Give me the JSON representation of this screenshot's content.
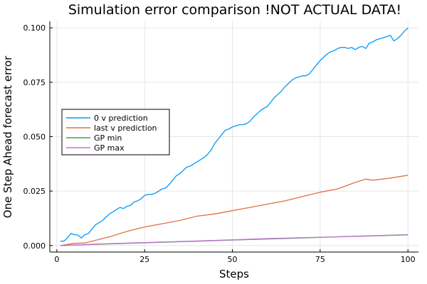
{
  "chart_data": {
    "type": "line",
    "title": "Simulation error comparison !NOT ACTUAL DATA!",
    "xlabel": "Steps",
    "ylabel": "One Step Ahead forecast error",
    "xlim": [
      -2,
      103
    ],
    "ylim": [
      -0.003,
      0.103
    ],
    "xticks": [
      0,
      25,
      50,
      75,
      100
    ],
    "xtick_labels": [
      "0",
      "25",
      "50",
      "75",
      "100"
    ],
    "yticks": [
      0.0,
      0.025,
      0.05,
      0.075,
      0.1
    ],
    "ytick_labels": [
      "0.000",
      "0.025",
      "0.050",
      "0.075",
      "0.100"
    ],
    "grid": true,
    "legend_position": "left",
    "series": [
      {
        "name": "0 v prediction",
        "color": "#009AFA",
        "x": [
          1,
          2,
          3,
          4,
          5,
          6,
          7,
          8,
          9,
          10,
          11,
          12,
          13,
          14,
          15,
          16,
          17,
          18,
          19,
          20,
          21,
          22,
          23,
          24,
          25,
          26,
          27,
          28,
          29,
          30,
          31,
          32,
          33,
          34,
          35,
          36,
          37,
          38,
          39,
          40,
          41,
          42,
          43,
          44,
          45,
          46,
          47,
          48,
          49,
          50,
          51,
          52,
          53,
          54,
          55,
          56,
          57,
          58,
          59,
          60,
          61,
          62,
          63,
          64,
          65,
          66,
          67,
          68,
          69,
          70,
          71,
          72,
          73,
          74,
          75,
          76,
          77,
          78,
          79,
          80,
          81,
          82,
          83,
          84,
          85,
          86,
          87,
          88,
          89,
          90,
          91,
          92,
          93,
          94,
          95,
          96,
          97,
          98,
          99,
          100
        ],
        "values": [
          0.002,
          0.002,
          0.0035,
          0.0055,
          0.005,
          0.0048,
          0.0035,
          0.005,
          0.0055,
          0.0075,
          0.0095,
          0.0105,
          0.0115,
          0.013,
          0.0145,
          0.0155,
          0.0165,
          0.0175,
          0.017,
          0.018,
          0.0185,
          0.02,
          0.0205,
          0.0215,
          0.023,
          0.0235,
          0.0235,
          0.024,
          0.025,
          0.026,
          0.0265,
          0.028,
          0.03,
          0.032,
          0.033,
          0.0345,
          0.036,
          0.0365,
          0.0375,
          0.0385,
          0.0395,
          0.0405,
          0.042,
          0.044,
          0.047,
          0.049,
          0.051,
          0.053,
          0.0535,
          0.0545,
          0.055,
          0.0555,
          0.0555,
          0.056,
          0.057,
          0.059,
          0.0605,
          0.062,
          0.063,
          0.064,
          0.066,
          0.068,
          0.0695,
          0.071,
          0.073,
          0.0745,
          0.076,
          0.077,
          0.0775,
          0.078,
          0.078,
          0.079,
          0.081,
          0.083,
          0.085,
          0.0865,
          0.088,
          0.089,
          0.0895,
          0.0905,
          0.091,
          0.091,
          0.0905,
          0.091,
          0.09,
          0.091,
          0.0915,
          0.0905,
          0.093,
          0.0935,
          0.0945,
          0.095,
          0.0955,
          0.096,
          0.0965,
          0.094,
          0.095,
          0.0965,
          0.0985,
          0.1
        ]
      },
      {
        "name": "last v prediction",
        "color": "#E26F46",
        "x": [
          1,
          5,
          8,
          10,
          15,
          20,
          25,
          30,
          35,
          40,
          45,
          50,
          55,
          60,
          65,
          70,
          75,
          80,
          85,
          88,
          90,
          95,
          100
        ],
        "values": [
          0.0,
          0.001,
          0.0012,
          0.002,
          0.004,
          0.0065,
          0.0085,
          0.01,
          0.0115,
          0.0135,
          0.0145,
          0.016,
          0.0175,
          0.019,
          0.0205,
          0.0225,
          0.0245,
          0.026,
          0.029,
          0.0305,
          0.03,
          0.031,
          0.0323
        ]
      },
      {
        "name": "GP min",
        "color": "#3EA44E",
        "x": [
          1,
          10,
          20,
          30,
          40,
          50,
          60,
          70,
          80,
          90,
          100
        ],
        "values": [
          0.0,
          0.0005,
          0.001,
          0.0015,
          0.002,
          0.0025,
          0.003,
          0.0035,
          0.004,
          0.0045,
          0.005
        ]
      },
      {
        "name": "GP max",
        "color": "#C371D2",
        "x": [
          1,
          10,
          20,
          30,
          40,
          50,
          60,
          70,
          80,
          90,
          100
        ],
        "values": [
          0.0,
          0.0006,
          0.0011,
          0.0016,
          0.0021,
          0.0026,
          0.0032,
          0.0036,
          0.004,
          0.0044,
          0.0049
        ]
      }
    ]
  }
}
